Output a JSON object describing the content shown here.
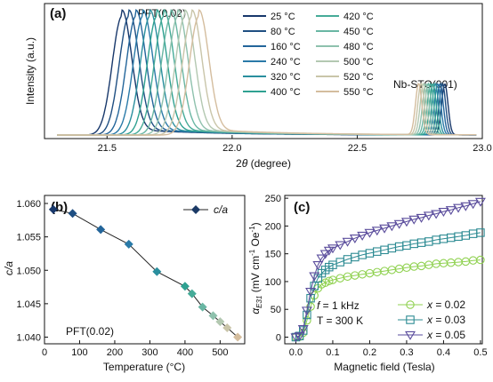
{
  "chart_data": [
    {
      "panel": "(a)",
      "type": "line",
      "xlabel_prefix": "2",
      "xlabel_theta": "θ",
      "xlabel_suffix": " (degree)",
      "ylabel": "Intensity (a.u.)",
      "xlim": [
        21.25,
        23.0
      ],
      "xticks": [
        "21.5",
        "22.0",
        "22.5",
        "23.0"
      ],
      "xtick_values": [
        21.5,
        22.0,
        22.5,
        23.0
      ],
      "grid": false,
      "legend_placement": "top-center",
      "annotations": [
        "PFT(0.02)",
        "Nb-STO(001)"
      ],
      "peak_film": {
        "position": 21.56,
        "shift_per_series": 0.028,
        "width": 0.055
      },
      "peak_substrate": {
        "position": 22.85,
        "shift_per_series": 0.0095,
        "width": 0.018
      },
      "series": [
        {
          "name": "25 °C",
          "color": "#18386b"
        },
        {
          "name": "80 °C",
          "color": "#1f4f82"
        },
        {
          "name": "160 °C",
          "color": "#23659a"
        },
        {
          "name": "240 °C",
          "color": "#2a7aa8"
        },
        {
          "name": "320 °C",
          "color": "#2a8f9e"
        },
        {
          "name": "400 °C",
          "color": "#2fa191"
        },
        {
          "name": "420 °C",
          "color": "#46ab98"
        },
        {
          "name": "450 °C",
          "color": "#69b6a3"
        },
        {
          "name": "480 °C",
          "color": "#8ec1ad"
        },
        {
          "name": "500 °C",
          "color": "#b3c8b1"
        },
        {
          "name": "520 °C",
          "color": "#c9c5a9"
        },
        {
          "name": "550 °C",
          "color": "#d4bd9e"
        }
      ]
    },
    {
      "panel": "(b)",
      "type": "line",
      "xlabel": "Temperature (°C)",
      "ylabel": "c/a",
      "xlim": [
        0,
        570
      ],
      "ylim": [
        1.039,
        1.0612
      ],
      "xticks": [
        "0",
        "100",
        "200",
        "300",
        "400",
        "500"
      ],
      "xtick_values": [
        0,
        100,
        200,
        300,
        400,
        500
      ],
      "yticks": [
        "1.040",
        "1.045",
        "1.050",
        "1.055",
        "1.060"
      ],
      "ytick_values": [
        1.04,
        1.045,
        1.05,
        1.055,
        1.06
      ],
      "legend_placement": "top-right",
      "annotations": [
        "PFT(0.02)"
      ],
      "series": [
        {
          "name": "c/a",
          "x": [
            25,
            80,
            160,
            240,
            320,
            400,
            420,
            450,
            480,
            500,
            520,
            550
          ],
          "y": [
            1.0591,
            1.0585,
            1.0561,
            1.0539,
            1.0498,
            1.0476,
            1.0465,
            1.0445,
            1.0432,
            1.0423,
            1.0414,
            1.04
          ],
          "colors": [
            "#18386b",
            "#1f4f82",
            "#23659a",
            "#2a7aa8",
            "#2a8f9e",
            "#2fa191",
            "#46ab98",
            "#69b6a3",
            "#8ec1ad",
            "#b3c8b1",
            "#c9c5a9",
            "#d4bd9e"
          ]
        }
      ]
    },
    {
      "panel": "(c)",
      "type": "scatter",
      "xlabel": "Magnetic field (Tesla)",
      "ylabel_alpha": "α",
      "ylabel_sub": "E31",
      "ylabel_units_a": " (mV cm",
      "ylabel_sup1": "-1",
      "ylabel_units_b": " Oe",
      "ylabel_sup2": "-1",
      "ylabel_end": ")",
      "xlim": [
        -0.03,
        0.505
      ],
      "ylim": [
        -12,
        255
      ],
      "xticks": [
        "0.0",
        "0.1",
        "0.2",
        "0.3",
        "0.4",
        "0.5"
      ],
      "xtick_values": [
        0.0,
        0.1,
        0.2,
        0.3,
        0.4,
        0.5
      ],
      "yticks": [
        "0",
        "50",
        "100",
        "150",
        "200",
        "250"
      ],
      "ytick_values": [
        0,
        50,
        100,
        150,
        200,
        250
      ],
      "annotation_f_var": "f",
      "annotation_f_rest": " = 1 kHz",
      "annotation_T": "T = 300 K",
      "legend_placement": "bottom-right",
      "series": [
        {
          "name_var": "x",
          "name_rest": " = 0.02",
          "marker": "circle",
          "color": "#8fd14f",
          "x": [
            0.0,
            0.01,
            0.02,
            0.03,
            0.04,
            0.05,
            0.06,
            0.07,
            0.08,
            0.09,
            0.1,
            0.12,
            0.14,
            0.16,
            0.18,
            0.2,
            0.22,
            0.24,
            0.26,
            0.28,
            0.3,
            0.32,
            0.34,
            0.36,
            0.38,
            0.4,
            0.42,
            0.44,
            0.46,
            0.48,
            0.5
          ],
          "y": [
            0,
            1,
            8,
            30,
            55,
            75,
            88,
            95,
            98,
            101,
            103,
            106,
            109,
            111,
            113,
            115,
            117,
            119,
            121,
            123,
            125,
            127,
            128,
            130,
            132,
            133,
            134,
            135,
            136,
            138,
            139
          ]
        },
        {
          "name_var": "x",
          "name_rest": " = 0.03",
          "marker": "square",
          "color": "#2d8b93",
          "x": [
            0.0,
            0.01,
            0.02,
            0.03,
            0.04,
            0.05,
            0.06,
            0.07,
            0.08,
            0.09,
            0.1,
            0.12,
            0.14,
            0.16,
            0.18,
            0.2,
            0.22,
            0.24,
            0.26,
            0.28,
            0.3,
            0.32,
            0.34,
            0.36,
            0.38,
            0.4,
            0.42,
            0.44,
            0.46,
            0.48,
            0.5
          ],
          "y": [
            0,
            2,
            12,
            40,
            70,
            92,
            106,
            115,
            121,
            126,
            130,
            135,
            140,
            144,
            148,
            151,
            154,
            157,
            160,
            163,
            165,
            168,
            170,
            172,
            175,
            177,
            179,
            181,
            183,
            186,
            188
          ]
        },
        {
          "name_var": "x",
          "name_rest": " = 0.05",
          "marker": "triangle-down",
          "color": "#5a4c9c",
          "x": [
            0.0,
            0.01,
            0.02,
            0.03,
            0.04,
            0.05,
            0.06,
            0.07,
            0.08,
            0.09,
            0.1,
            0.12,
            0.14,
            0.16,
            0.18,
            0.2,
            0.22,
            0.24,
            0.26,
            0.28,
            0.3,
            0.32,
            0.34,
            0.36,
            0.38,
            0.4,
            0.42,
            0.44,
            0.46,
            0.48,
            0.5
          ],
          "y": [
            0,
            2,
            15,
            48,
            82,
            110,
            130,
            142,
            150,
            156,
            160,
            166,
            172,
            178,
            183,
            188,
            192,
            196,
            200,
            204,
            208,
            212,
            215,
            219,
            222,
            226,
            229,
            233,
            236,
            240,
            244
          ]
        }
      ]
    }
  ]
}
